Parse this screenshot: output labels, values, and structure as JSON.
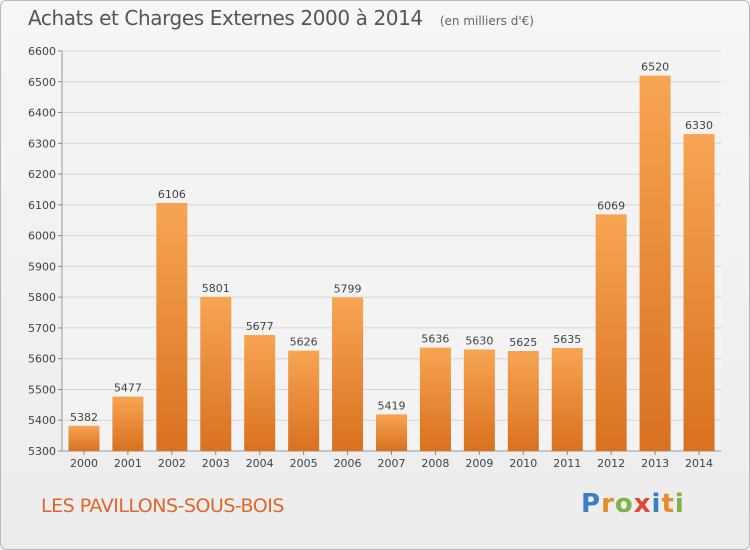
{
  "header": {
    "title": "Achats et Charges Externes 2000 à 2014",
    "subtitle": "(en milliers d'€)"
  },
  "footer": {
    "commune": "LES PAVILLONS-SOUS-BOIS",
    "logo_text": "Proxiti",
    "logo_letters": [
      {
        "ch": "P",
        "color": "#3d7fc4"
      },
      {
        "ch": "r",
        "color": "#e88a2e"
      },
      {
        "ch": "o",
        "color": "#7cb342"
      },
      {
        "ch": "x",
        "color": "#e2463b"
      },
      {
        "ch": "i",
        "color": "#3d7fc4"
      },
      {
        "ch": "t",
        "color": "#e88a2e"
      },
      {
        "ch": "i",
        "color": "#7cb342"
      }
    ]
  },
  "colors": {
    "bar_light": "#f7a553",
    "bar_dark": "#d9711f",
    "grid": "#d6d6d6",
    "accent": "#e0662b"
  },
  "chart_data": {
    "type": "bar",
    "title": "Achats et Charges Externes 2000 à 2014",
    "subtitle": "(en milliers d'€)",
    "categories": [
      "2000",
      "2001",
      "2002",
      "2003",
      "2004",
      "2005",
      "2006",
      "2007",
      "2008",
      "2009",
      "2010",
      "2011",
      "2012",
      "2013",
      "2014"
    ],
    "values": [
      5382,
      5477,
      6106,
      5801,
      5677,
      5626,
      5799,
      5419,
      5636,
      5630,
      5625,
      5635,
      6069,
      6520,
      6330
    ],
    "ylim": [
      5300,
      6600
    ],
    "yticks": [
      5300,
      5400,
      5500,
      5600,
      5700,
      5800,
      5900,
      6000,
      6100,
      6200,
      6300,
      6400,
      6500,
      6600
    ],
    "grid": true,
    "data_labels": true
  }
}
